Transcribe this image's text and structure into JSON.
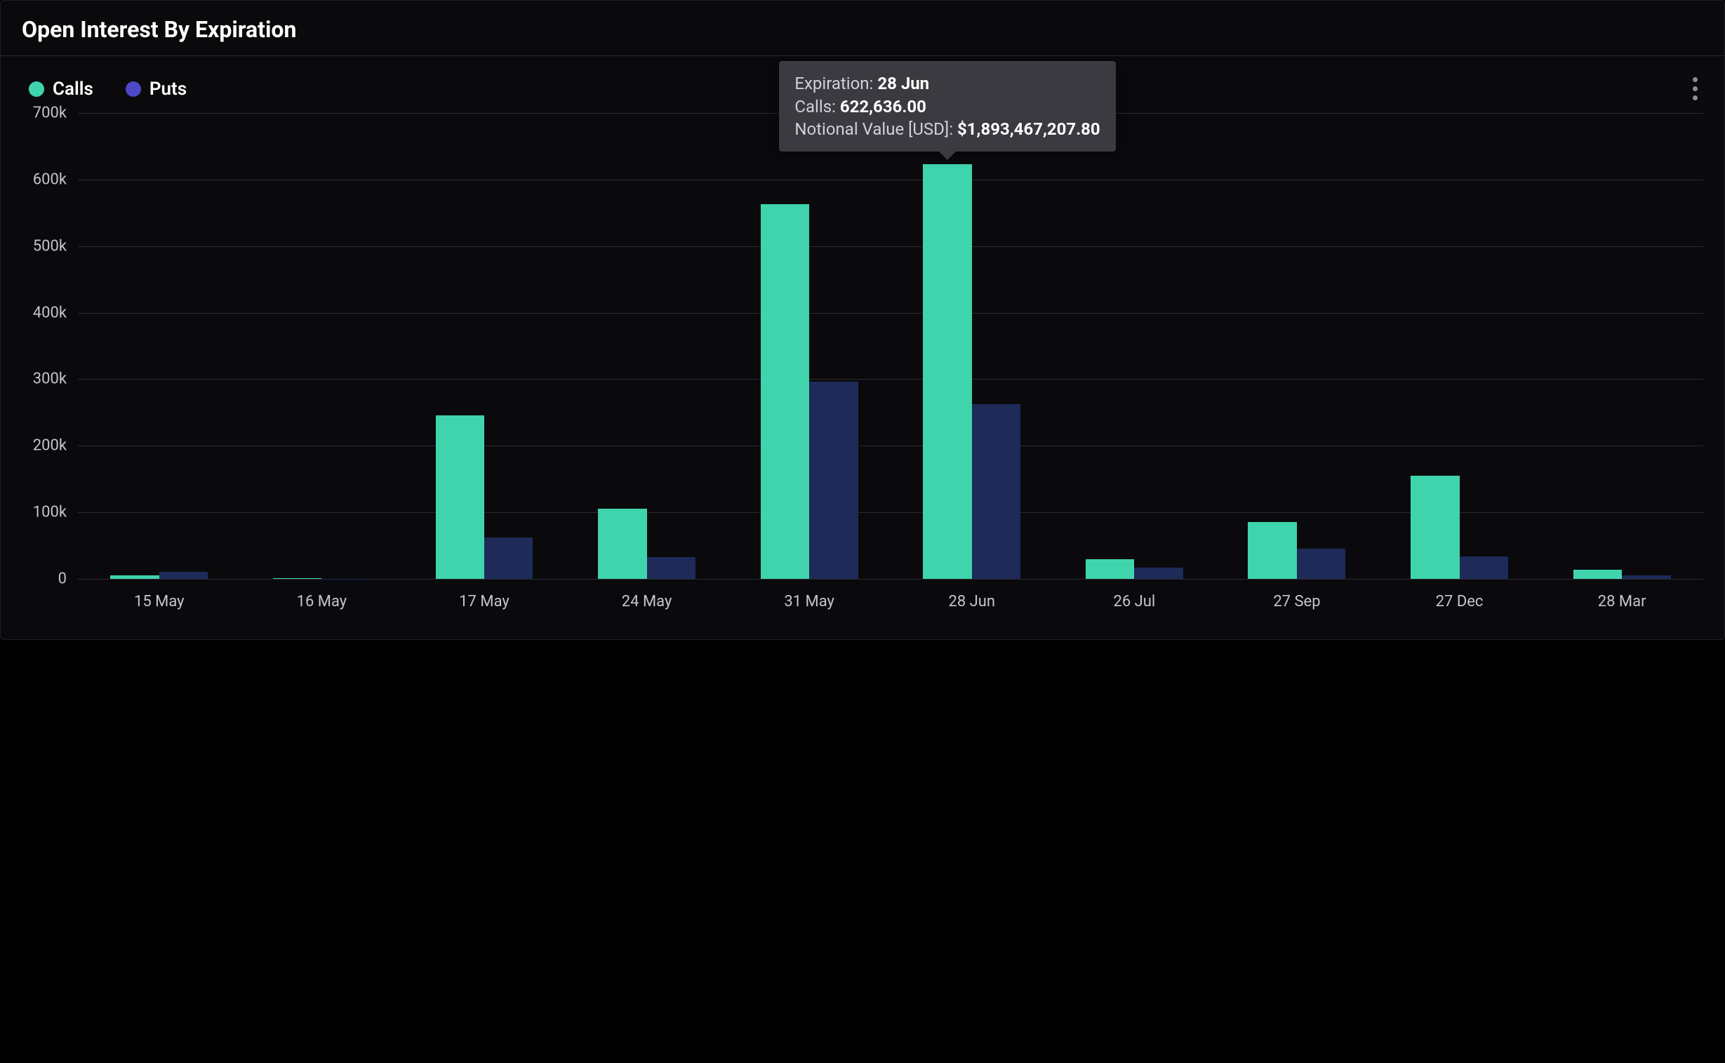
{
  "panel": {
    "title": "Open Interest By Expiration"
  },
  "legend": {
    "items": [
      {
        "label": "Calls",
        "color": "#40d4ad"
      },
      {
        "label": "Puts",
        "color": "#4b49c7"
      }
    ]
  },
  "chart": {
    "type": "bar-grouped",
    "background_color": "#0a0a0d",
    "grid_color": "#2a2a30",
    "axis_label_color": "#c4c4cc",
    "axis_label_fontsize": 22,
    "ylim": [
      0,
      700000
    ],
    "ytick_step": 100000,
    "ytick_labels": [
      "0",
      "100k",
      "200k",
      "300k",
      "400k",
      "500k",
      "600k",
      "700k"
    ],
    "bar_group_gap_pct": 40,
    "bar_inner_gap_pct": 0,
    "series": [
      {
        "name": "Calls",
        "color": "#40d4ad"
      },
      {
        "name": "Puts",
        "color": "#1e2a58"
      }
    ],
    "categories": [
      "15 May",
      "16 May",
      "17 May",
      "24 May",
      "31 May",
      "28 Jun",
      "26 Jul",
      "27 Sep",
      "27 Dec",
      "28 Mar"
    ],
    "values": {
      "Calls": [
        5000,
        1000,
        246000,
        105000,
        563000,
        622636,
        30000,
        85000,
        155000,
        14000
      ],
      "Puts": [
        11000,
        500,
        62000,
        33000,
        296000,
        263000,
        17000,
        45000,
        34000,
        5000
      ]
    }
  },
  "tooltip": {
    "category_index": 5,
    "lines": [
      {
        "label": "Expiration: ",
        "value": "28 Jun"
      },
      {
        "label": "Calls: ",
        "value": "622,636.00"
      },
      {
        "label": "Notional Value [USD]: ",
        "value": "$1,893,467,207.80"
      }
    ],
    "background_color": "#3a3a40",
    "font_size": 24
  }
}
